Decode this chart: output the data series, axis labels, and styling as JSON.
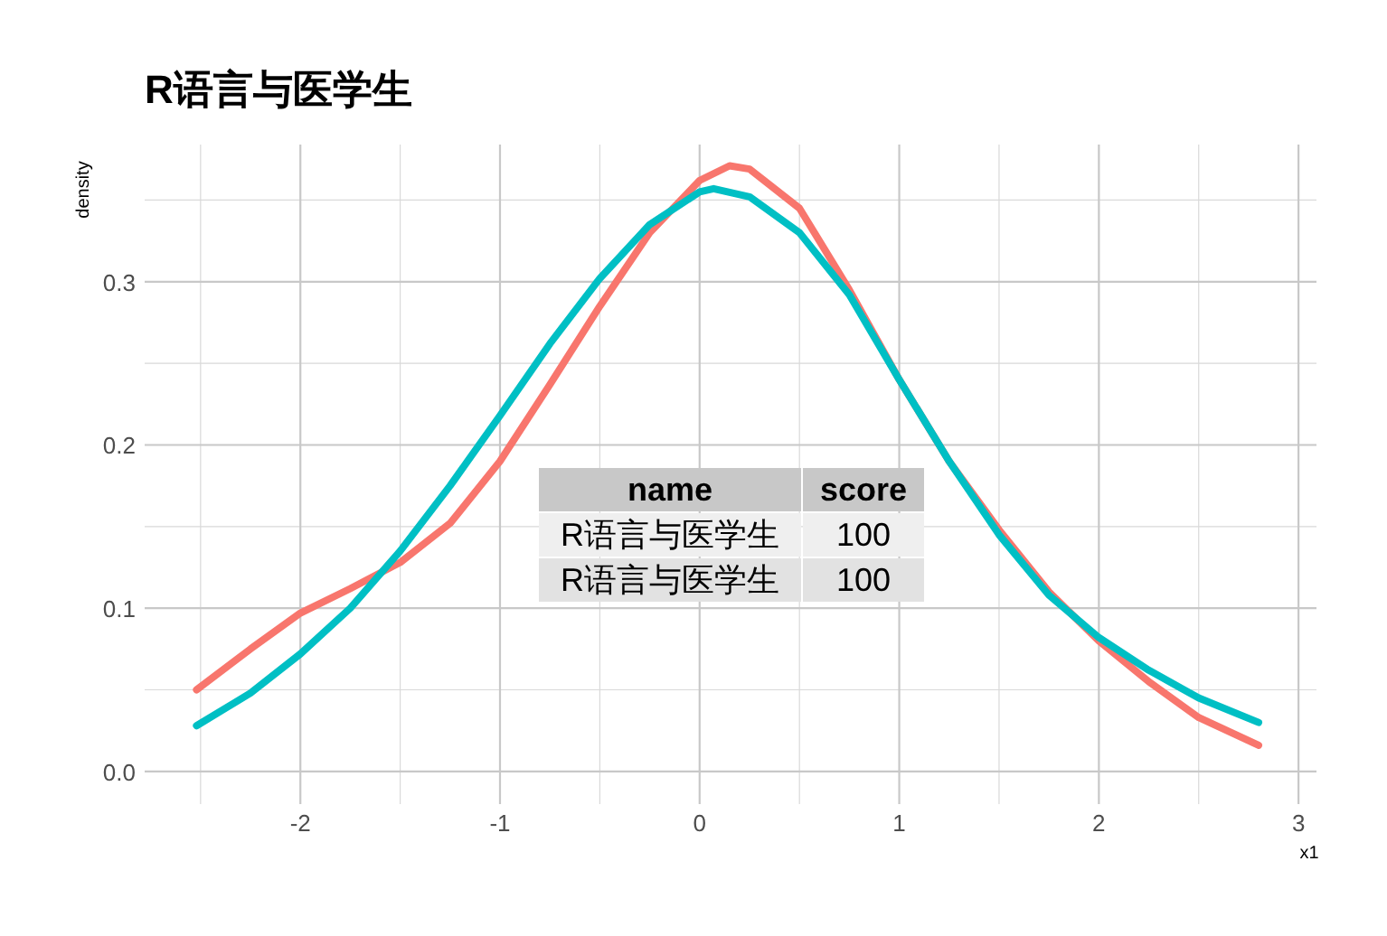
{
  "chart_data": {
    "type": "line",
    "title": "R语言与医学生",
    "xlabel": "x1",
    "ylabel": "density",
    "xlim": [
      -2.78,
      3.09
    ],
    "ylim": [
      -0.02,
      0.384
    ],
    "xticks": [
      -2,
      -1,
      0,
      1,
      2,
      3
    ],
    "yticks": [
      {
        "value": 0,
        "label": "0.0"
      },
      0.1,
      0.2,
      0.3
    ],
    "grid": true,
    "marker": "none",
    "line_style": "solid",
    "annotations": [
      "name",
      "score",
      "R语言与医学生",
      "100",
      "R语言与医学生",
      "100"
    ],
    "series": [
      {
        "color": "#f8766d",
        "x": [
          -2.52,
          -2.25,
          -2,
          -1.75,
          -1.5,
          -1.25,
          -1,
          -0.75,
          -0.5,
          -0.25,
          0,
          0.15,
          0.25,
          0.5,
          0.75,
          1,
          1.25,
          1.5,
          1.75,
          2,
          2.25,
          2.5,
          2.8
        ],
        "values": [
          0.05,
          0.075,
          0.097,
          0.112,
          0.128,
          0.152,
          0.19,
          0.237,
          0.285,
          0.33,
          0.362,
          0.371,
          0.369,
          0.345,
          0.295,
          0.24,
          0.19,
          0.148,
          0.11,
          0.08,
          0.055,
          0.033,
          0.016
        ]
      },
      {
        "color": "#00bfc4",
        "x": [
          -2.52,
          -2.25,
          -2,
          -1.75,
          -1.5,
          -1.25,
          -1,
          -0.75,
          -0.5,
          -0.25,
          0,
          0.07,
          0.25,
          0.5,
          0.75,
          1,
          1.25,
          1.5,
          1.75,
          2,
          2.25,
          2.5,
          2.8
        ],
        "values": [
          0.028,
          0.048,
          0.072,
          0.1,
          0.135,
          0.175,
          0.218,
          0.262,
          0.302,
          0.335,
          0.355,
          0.357,
          0.352,
          0.33,
          0.292,
          0.24,
          0.19,
          0.145,
          0.108,
          0.082,
          0.062,
          0.045,
          0.03
        ]
      }
    ]
  }
}
